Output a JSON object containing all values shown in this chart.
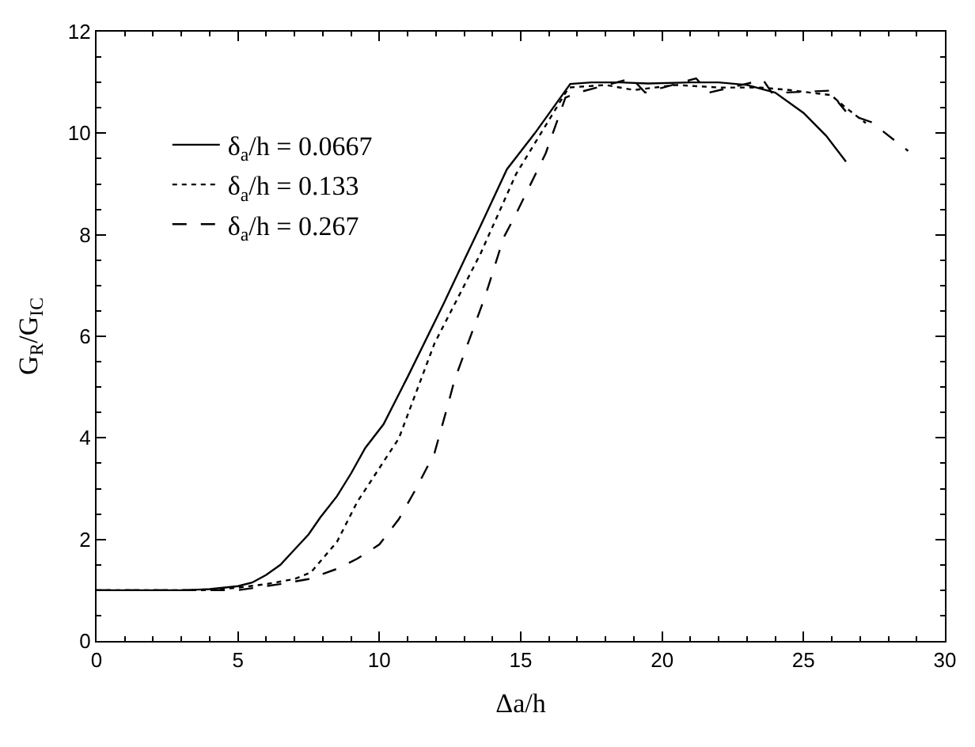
{
  "chart_data": {
    "type": "line",
    "xlabel": "Δa/h",
    "ylabel": "G$_{R}$/G$_{IC}$",
    "xlim": [
      0,
      30
    ],
    "xticks": [
      0,
      5,
      10,
      15,
      20,
      25,
      30
    ],
    "ylim": [
      0,
      12
    ],
    "yticks": [
      0,
      2,
      4,
      6,
      8,
      10,
      12
    ],
    "grid": false,
    "legend": "top left",
    "marker": "none",
    "series": [
      {
        "name": "δ$_{a}$/h = 0.0667",
        "color": "#000000",
        "line_style": "solid",
        "x": [
          0,
          3,
          4,
          5,
          5.5,
          6,
          6.5,
          7,
          7.5,
          7.91,
          8.5,
          9,
          9.5,
          10.15,
          11,
          12.27,
          13,
          13.6,
          14.51,
          15.5,
          16.75,
          17.5,
          18.5,
          19.5,
          21,
          22,
          23,
          24,
          25,
          25.8,
          26.5
        ],
        "values": [
          1,
          1,
          1.02,
          1.08,
          1.15,
          1.3,
          1.5,
          1.8,
          2.1,
          2.43,
          2.85,
          3.3,
          3.8,
          4.27,
          5.2,
          6.64,
          7.5,
          8.2,
          9.29,
          10.0,
          10.97,
          11.0,
          11.0,
          10.98,
          11.0,
          11.0,
          10.95,
          10.8,
          10.4,
          9.95,
          9.44
        ]
      },
      {
        "name": "δ$_{a}$/h = 0.133",
        "color": "#000000",
        "line_style": "dotted",
        "x": [
          0,
          4,
          5,
          6,
          7,
          7.58,
          8.5,
          9.22,
          10.69,
          11.95,
          13.58,
          14.84,
          16.7,
          18,
          19,
          20.5,
          22,
          23.5,
          24.5,
          25.97,
          26.5,
          27.2
        ],
        "values": [
          1,
          1,
          1.05,
          1.12,
          1.22,
          1.35,
          1.95,
          2.74,
          3.99,
          5.86,
          7.63,
          9.2,
          10.9,
          10.95,
          10.85,
          10.95,
          10.9,
          10.9,
          10.85,
          10.75,
          10.5,
          10.2
        ]
      },
      {
        "name": "δ$_{a}$/h = 0.267",
        "color": "#000000",
        "line_style": "dashed",
        "x": [
          0,
          5,
          6.49,
          7.5,
          8.5,
          9.22,
          10,
          10.69,
          11.3,
          11.95,
          12.4,
          12.66,
          13.75,
          14.4,
          14.78,
          15.88,
          16.58,
          17.02,
          18.93,
          19.4,
          21.2,
          21.66,
          23.57,
          23.9,
          24.33,
          26.02,
          26.24,
          26.57,
          27.39,
          28.7
        ],
        "values": [
          1,
          1,
          1.12,
          1.22,
          1.42,
          1.62,
          1.9,
          2.4,
          3.0,
          3.7,
          4.6,
          5.14,
          6.8,
          7.95,
          8.35,
          9.6,
          10.7,
          10.8,
          11.08,
          10.8,
          11.08,
          10.8,
          11.05,
          10.78,
          10.8,
          10.84,
          10.6,
          10.38,
          10.22,
          9.65
        ]
      }
    ]
  }
}
